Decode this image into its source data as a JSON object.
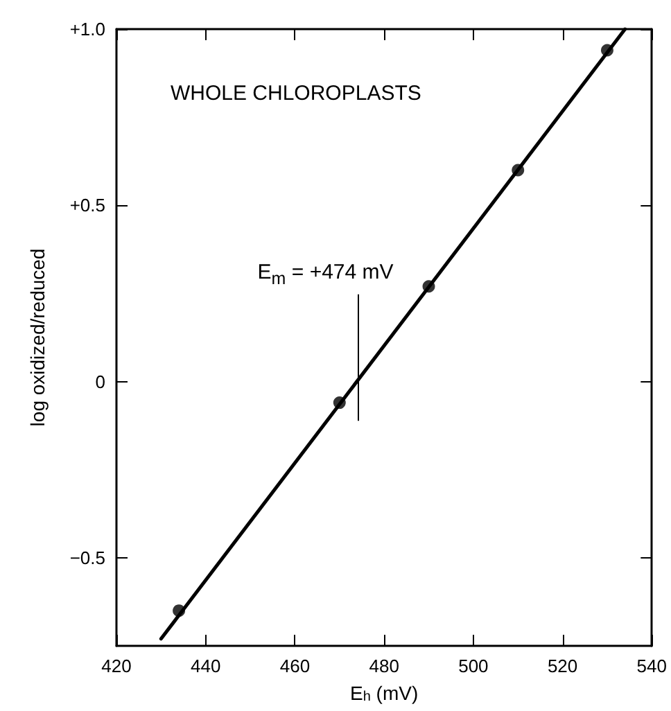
{
  "chart_data": {
    "type": "scatter",
    "title": "WHOLE CHLOROPLASTS",
    "xlabel": "E$_{h}$ (mV)",
    "ylabel": "log oxidized/reduced",
    "ref_lines": [
      {
        "axis": "x",
        "value": 474,
        "label": "E$_{m}$ = +474 mV",
        "color": "#000000"
      }
    ],
    "series": [
      {
        "color": "#000000",
        "marker": "circle",
        "x": [
          434,
          470,
          490,
          510,
          530
        ],
        "values": [
          -0.65,
          -0.06,
          0.27,
          0.6,
          0.94
        ]
      },
      {
        "type": "line",
        "color": "#000000",
        "line_style": "solid",
        "x": [
          430,
          534
        ],
        "values": [
          -0.73,
          1.0
        ]
      }
    ],
    "xlim": [
      420,
      540
    ],
    "xticks": [
      420,
      440,
      460,
      480,
      500,
      520,
      540
    ],
    "ylim": [
      -0.75,
      1.0
    ],
    "yticks": [
      {
        "value": 1,
        "label": "+1.0"
      },
      {
        "value": 0.5,
        "label": "+0.5"
      },
      {
        "value": 0,
        "label": "0"
      },
      {
        "value": -0.5,
        "label": "−0.5"
      }
    ],
    "grid": false
  }
}
